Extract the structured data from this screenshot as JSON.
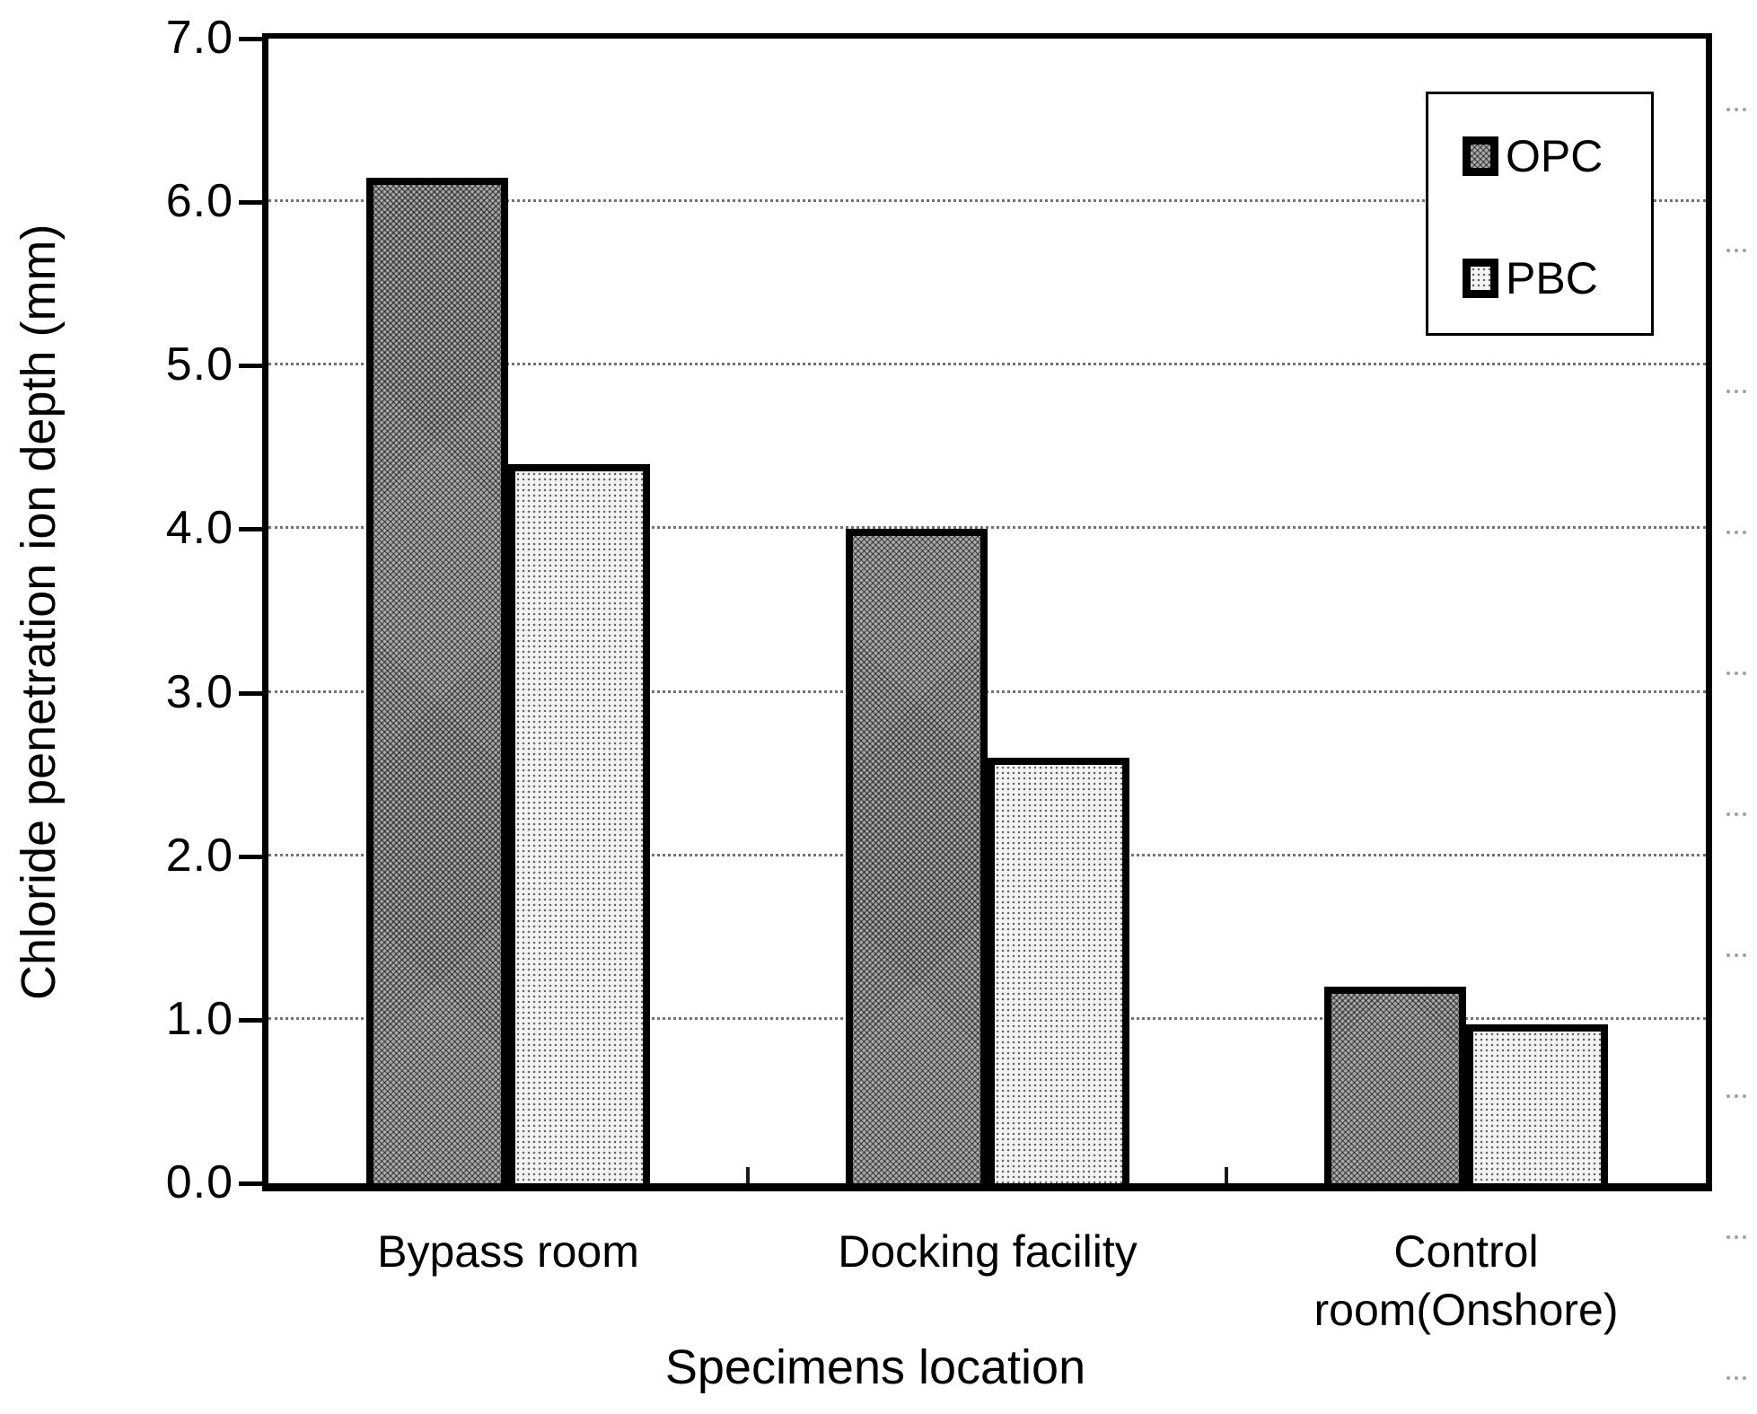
{
  "chart_data": {
    "type": "bar",
    "title": "",
    "ylabel": "Chloride penetration ion depth (mm)",
    "xlabel": "Specimens location",
    "categories": [
      "Bypass room",
      "Docking facility",
      "Control room(Onshore)"
    ],
    "series": [
      {
        "name": "OPC",
        "pattern": "dark-checker",
        "values": [
          6.15,
          4.0,
          1.2
        ]
      },
      {
        "name": "PBC",
        "pattern": "light-dots",
        "values": [
          4.4,
          2.6,
          0.97
        ]
      }
    ],
    "ylim": [
      0,
      7
    ],
    "ytick_step": 1.0,
    "ytick_labels": [
      "0.0",
      "1.0",
      "2.0",
      "3.0",
      "4.0",
      "5.0",
      "6.0",
      "7.0"
    ],
    "grid": "horizontal-dotted",
    "legend_position": "top-right"
  },
  "colors": {
    "ink": "#000000",
    "opc_fill": "#ababab",
    "pbc_fill": "#f3f3f3",
    "background": "#ffffff"
  }
}
